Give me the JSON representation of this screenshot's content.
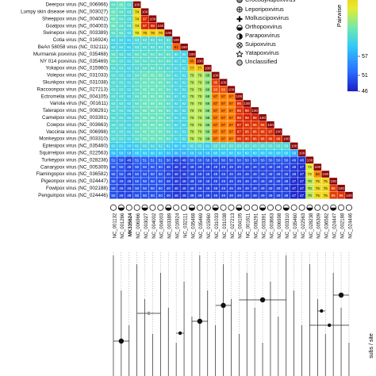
{
  "chart_data": {
    "type": "heatmap",
    "row_labels": [
      "Deerpox virus (NC_006966)",
      "Lumpy skin disease virus (NC_003027)",
      "Sheeppox virus (NC_004002)",
      "Goatpox virus (NC_004003)",
      "Swinepox virus (NC_003389)",
      "Cotia virus (NC_016924)",
      "BeAn 58058 virus (NC_032111)",
      "Murmansk poxvirus (NC_035468)",
      "NY 014 poxvirus (NC_035469)",
      "Yokapox virus (NC_015960)",
      "Volepox virus (NC_031033)",
      "Skunkpox virus (NC_031038)",
      "Raccoonpox virus (NC_027213)",
      "Ectromelia virus (NC_004105)",
      "Variola virus (NC_001611)",
      "Taterapox virus (NC_008291)",
      "Camelpox virus (NC_003391)",
      "Cowpox virus (NC_003663)",
      "Vaccinia virus (NC_006998)",
      "Monkeypox virus (NC_003310)",
      "Eptesipox virus (NC_035460)",
      "Squirrelpox virus (NC_022563)",
      "Turkeypox virus (NC_028238)",
      "Canarypox virus (NC_005309)",
      "Flamingopox virus (NC_036582)",
      "Pigeonpox virus (NC_024447)",
      "Fowlpox virus (NC_002188)",
      "Penguinpox virus (NC_024446)"
    ],
    "column_labels": [
      "NC_001132",
      "NC_001266",
      "MK335624",
      "NC_006966",
      "NC_003027",
      "NC_004002",
      "NC_004003",
      "NC_003389",
      "NC_016924",
      "NC_032111",
      "NC_035468",
      "NC_035469",
      "NC_015960",
      "NC_031033",
      "NC_031038",
      "NC_027213",
      "NC_004105",
      "NC_001611",
      "NC_008291",
      "NC_003391",
      "NC_003663",
      "NC_006998",
      "NC_003310",
      "NC_035460",
      "NC_022563",
      "NC_028238",
      "NC_005309",
      "NC_036582",
      "NC_024447",
      "NC_002188",
      "NC_024446"
    ],
    "highlight_column": 2,
    "highlight_color": "#e0202a",
    "values": [
      [
        64,
        65,
        63,
        100
      ],
      [
        65,
        64,
        63,
        74,
        100
      ],
      [
        65,
        64,
        63,
        74,
        97,
        100
      ],
      [
        65,
        64,
        63,
        74,
        97,
        98,
        100
      ],
      [
        64,
        64,
        62,
        72,
        76,
        76,
        76,
        100
      ],
      [
        62,
        62,
        61,
        63,
        63,
        63,
        63,
        63,
        100
      ],
      [
        62,
        62,
        61,
        63,
        63,
        63,
        63,
        63,
        91,
        100
      ],
      [
        64,
        63,
        62,
        64,
        64,
        64,
        64,
        64,
        62,
        62,
        100
      ],
      [
        64,
        63,
        62,
        64,
        64,
        64,
        64,
        64,
        62,
        62,
        86,
        100
      ],
      [
        63,
        63,
        62,
        63,
        64,
        64,
        64,
        63,
        62,
        62,
        77,
        77,
        100
      ],
      [
        63,
        63,
        62,
        64,
        65,
        65,
        65,
        64,
        62,
        62,
        70,
        70,
        68,
        100
      ],
      [
        63,
        63,
        62,
        64,
        65,
        65,
        65,
        64,
        62,
        62,
        70,
        70,
        68,
        95,
        100
      ],
      [
        63,
        63,
        62,
        64,
        65,
        65,
        65,
        64,
        62,
        62,
        70,
        70,
        68,
        93,
        93,
        100
      ],
      [
        63,
        63,
        62,
        64,
        65,
        65,
        65,
        64,
        62,
        62,
        70,
        70,
        68,
        87,
        87,
        87,
        100
      ],
      [
        63,
        63,
        62,
        64,
        65,
        65,
        65,
        64,
        62,
        62,
        70,
        70,
        68,
        87,
        87,
        87,
        96,
        100
      ],
      [
        63,
        63,
        62,
        64,
        65,
        65,
        65,
        64,
        62,
        62,
        70,
        70,
        68,
        87,
        87,
        87,
        96,
        98,
        100
      ],
      [
        63,
        63,
        62,
        64,
        65,
        65,
        65,
        64,
        62,
        62,
        70,
        70,
        68,
        87,
        87,
        87,
        96,
        98,
        98,
        100
      ],
      [
        63,
        63,
        62,
        64,
        65,
        65,
        65,
        64,
        62,
        62,
        70,
        70,
        68,
        87,
        87,
        87,
        97,
        96,
        96,
        96,
        100
      ],
      [
        63,
        63,
        62,
        64,
        65,
        65,
        65,
        64,
        62,
        62,
        70,
        70,
        68,
        87,
        87,
        87,
        97,
        96,
        96,
        96,
        97,
        100
      ],
      [
        63,
        63,
        62,
        64,
        65,
        65,
        65,
        64,
        62,
        62,
        70,
        70,
        68,
        87,
        87,
        87,
        96,
        96,
        96,
        96,
        96,
        96,
        100
      ],
      [
        61,
        61,
        60,
        61,
        62,
        62,
        62,
        61,
        60,
        60,
        62,
        62,
        61,
        63,
        63,
        63,
        63,
        63,
        63,
        63,
        63,
        63,
        63,
        100
      ],
      [
        59,
        59,
        58,
        60,
        60,
        60,
        60,
        59,
        58,
        58,
        59,
        59,
        59,
        60,
        60,
        60,
        60,
        60,
        60,
        60,
        60,
        60,
        60,
        58,
        100
      ],
      [
        51,
        50,
        49,
        51,
        51,
        51,
        51,
        50,
        49,
        49,
        50,
        50,
        50,
        50,
        50,
        50,
        50,
        50,
        50,
        50,
        50,
        50,
        50,
        49,
        48,
        100
      ],
      [
        50,
        50,
        49,
        50,
        50,
        50,
        50,
        49,
        48,
        48,
        49,
        49,
        49,
        49,
        49,
        49,
        49,
        49,
        49,
        49,
        49,
        49,
        49,
        48,
        47,
        72,
        100
      ],
      [
        50,
        50,
        49,
        50,
        50,
        50,
        50,
        49,
        48,
        48,
        49,
        49,
        49,
        49,
        49,
        49,
        49,
        49,
        49,
        49,
        49,
        49,
        49,
        48,
        47,
        72,
        86,
        100
      ],
      [
        50,
        49,
        49,
        50,
        50,
        50,
        50,
        49,
        48,
        48,
        49,
        49,
        49,
        49,
        49,
        49,
        49,
        49,
        49,
        49,
        49,
        49,
        49,
        47,
        47,
        70,
        75,
        75,
        100
      ],
      [
        50,
        49,
        49,
        50,
        50,
        50,
        50,
        49,
        48,
        48,
        49,
        49,
        49,
        49,
        49,
        49,
        49,
        49,
        49,
        49,
        49,
        49,
        49,
        47,
        47,
        70,
        75,
        75,
        95,
        100
      ],
      [
        50,
        49,
        49,
        50,
        50,
        50,
        50,
        49,
        48,
        48,
        49,
        49,
        49,
        49,
        49,
        49,
        49,
        49,
        49,
        49,
        49,
        49,
        49,
        47,
        47,
        70,
        75,
        75,
        95,
        96,
        100
      ]
    ],
    "colorscale": [
      [
        46,
        "#1c1cc4"
      ],
      [
        52,
        "#2a6cff"
      ],
      [
        60,
        "#30c8f8"
      ],
      [
        66,
        "#70e8b0"
      ],
      [
        72,
        "#e4ec30"
      ],
      [
        80,
        "#ffb400"
      ],
      [
        90,
        "#ff6a00"
      ],
      [
        98,
        "#d42000"
      ],
      [
        100,
        "#8b0000"
      ]
    ],
    "colorbar_title": "Pairwise",
    "clim": [
      46,
      100
    ],
    "cticks": [
      46,
      51,
      57
    ],
    "legend": [
      "Crocodylidpoxvirus",
      "Leporipoxvirus",
      "Molluscipoxvirus",
      "Orthopoxvirus",
      "Parapoxvirus",
      "Suipoxvirus",
      "Yatapoxvirus",
      "Unclassified"
    ],
    "scale_label": "subs / site"
  }
}
